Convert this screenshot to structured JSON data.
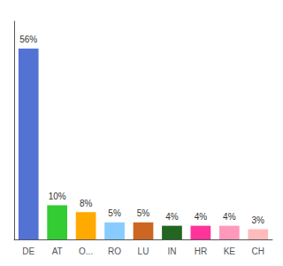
{
  "chart_data": {
    "type": "bar",
    "categories": [
      "DE",
      "AT",
      "O...",
      "RO",
      "LU",
      "IN",
      "HR",
      "KE",
      "CH"
    ],
    "values": [
      56,
      10,
      8,
      5,
      5,
      4,
      4,
      4,
      3
    ],
    "value_labels": [
      "56%",
      "10%",
      "8%",
      "5%",
      "5%",
      "4%",
      "4%",
      "4%",
      "3%"
    ],
    "colors": [
      "#5272d4",
      "#33cc33",
      "#ffaa00",
      "#88ccff",
      "#cc6622",
      "#226622",
      "#ff3399",
      "#ff99bb",
      "#ffbbbb"
    ],
    "ylim": [
      0,
      64
    ],
    "grid": false,
    "tick_labels": "x"
  }
}
